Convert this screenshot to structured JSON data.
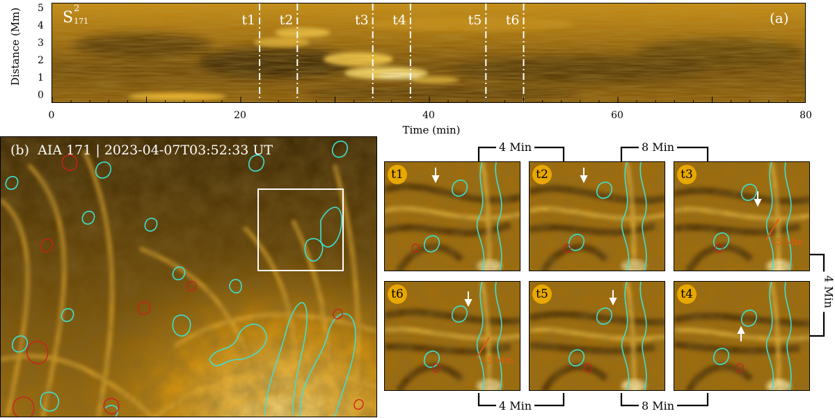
{
  "panel_a": {
    "label": "(a)",
    "series_label": "S",
    "series_sup": "2",
    "series_sub": "171",
    "y_axis_label": "Distance (Mm)",
    "x_axis_label": "Time (min)",
    "y_ticks": [
      "0",
      "1",
      "2",
      "3",
      "4",
      "5"
    ],
    "x_ticks": [
      "0",
      "20",
      "40",
      "60",
      "80"
    ],
    "xlim": [
      0,
      80
    ],
    "ylim": [
      0,
      5
    ],
    "markers": [
      {
        "label": "t1",
        "time": 22
      },
      {
        "label": "t2",
        "time": 26
      },
      {
        "label": "t3",
        "time": 34
      },
      {
        "label": "t4",
        "time": 38
      },
      {
        "label": "t5",
        "time": 46
      },
      {
        "label": "t6",
        "time": 50
      }
    ]
  },
  "panel_b": {
    "label": "(b)",
    "title": "AIA 171 | 2023-04-07T03:52:33 UT"
  },
  "insets": {
    "t1": "t1",
    "t2": "t2",
    "t3": "t3",
    "t4": "t4",
    "t5": "t5",
    "t6": "t6",
    "scale_label_t3": "~5 Mm",
    "scale_label_t6": "~5 Mm"
  },
  "brackets": {
    "top_left": "4 Min",
    "top_right": "8 Min",
    "right": "4 Min",
    "bottom_left": "4 Min",
    "bottom_right": "8 Min"
  },
  "colors": {
    "accent_gold": "#e8a800",
    "contour_cyan": "#40e0d0",
    "contour_red": "#cc1f1f",
    "arrow_orange": "#e05a10"
  }
}
